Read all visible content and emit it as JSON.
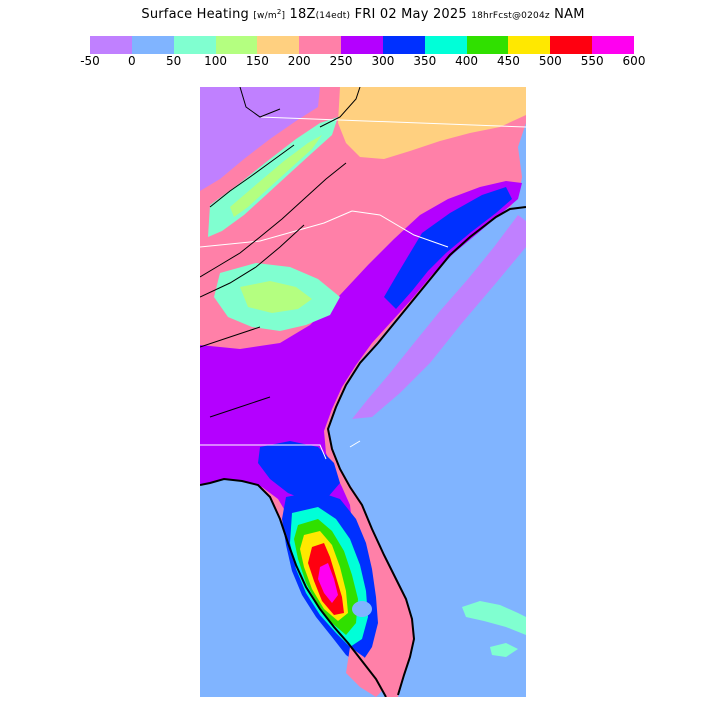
{
  "title": {
    "main": "Surface Heating",
    "units_open": "[w/m",
    "units_sup": "2",
    "units_close": "]",
    "valid": "18Z",
    "valid_local": "(14edt)",
    "date": "FRI 02 May 2025",
    "forecast": "18hrFcst@0204z",
    "model": "NAM"
  },
  "legend": {
    "colors": [
      "#c080ff",
      "#80b4ff",
      "#80ffd0",
      "#b4ff80",
      "#ffd080",
      "#ff80a8",
      "#b400ff",
      "#0030ff",
      "#00ffd8",
      "#30e000",
      "#ffe800",
      "#ff0010",
      "#ff00f0"
    ],
    "ticks": [
      "-50",
      "0",
      "50",
      "100",
      "150",
      "200",
      "250",
      "300",
      "350",
      "400",
      "450",
      "500",
      "550",
      "600"
    ]
  },
  "map": {
    "ocean_color": "#80b4ff",
    "region": "Southeast US (GA, SC, NC, FL)"
  }
}
